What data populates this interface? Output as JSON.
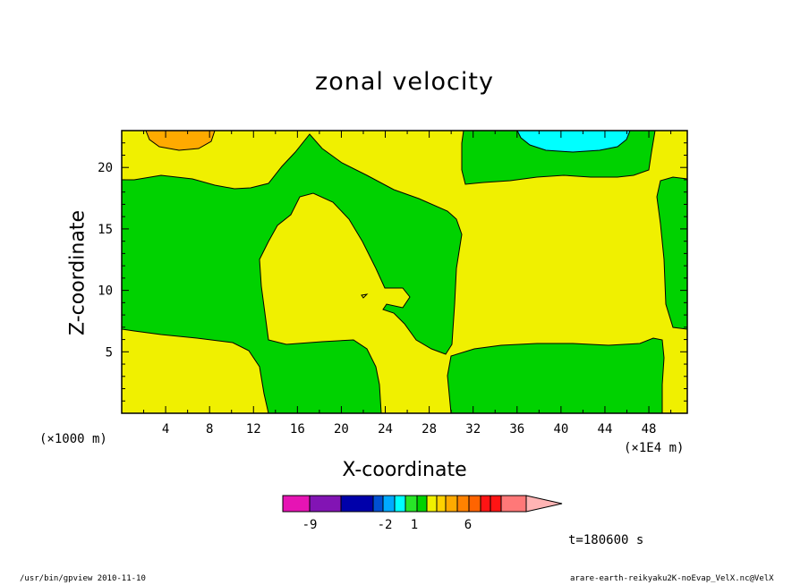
{
  "chart_data": {
    "type": "heatmap",
    "title": "zonal velocity",
    "xlabel": "X-coordinate",
    "ylabel": "Z-coordinate",
    "x_unit_label": "(×1000 m)",
    "x_scale_label": "(×1E4 m)",
    "xlim": [
      0,
      51.5
    ],
    "ylim": [
      0,
      23
    ],
    "x_ticks": [
      4,
      8,
      12,
      16,
      20,
      24,
      28,
      32,
      36,
      40,
      44,
      48
    ],
    "y_ticks": [
      5,
      10,
      15,
      20
    ],
    "colorbar": {
      "colors": [
        "#e614b4",
        "#8214b4",
        "#0000aa",
        "#0050d2",
        "#00aaff",
        "#00ffff",
        "#28e628",
        "#00d200",
        "#f0f000",
        "#ffd200",
        "#ffaa00",
        "#ff8200",
        "#ff6400",
        "#ff1414",
        "#ff1414",
        "#ff7878",
        "#ffb4b4"
      ],
      "tick_labels": [
        {
          "label": "-9",
          "value": -9
        },
        {
          "label": "-2",
          "value": -2
        },
        {
          "label": "1",
          "value": 1
        },
        {
          "label": "6",
          "value": 6
        }
      ]
    },
    "regions": [
      {
        "level": "green",
        "color": "#00d200",
        "description": "negative velocity band left side"
      },
      {
        "level": "yellow",
        "color": "#f0f000",
        "description": "background near zero"
      },
      {
        "level": "orange",
        "color": "#ffaa00",
        "description": "positive cell top-left"
      },
      {
        "level": "cyan",
        "color": "#00ffff",
        "description": "negative cell top-right"
      }
    ]
  },
  "annotations": {
    "time": "t=180600 s",
    "footer_left": "/usr/bin/gpview   2010-11-10",
    "footer_right": "arare-earth-reikyaku2K-noEvap_VelX.nc@VelX"
  }
}
